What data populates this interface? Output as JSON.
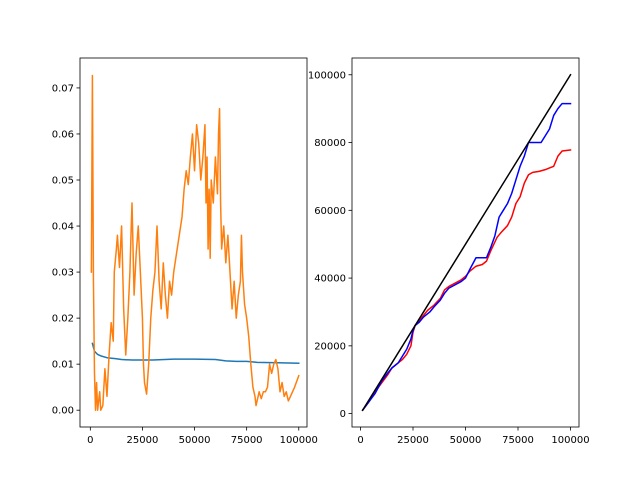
{
  "chart_data": [
    {
      "type": "line",
      "title": "",
      "xlabel": "",
      "ylabel": "",
      "xlim": [
        -4950,
        103950
      ],
      "ylim": [
        -0.00365,
        0.0765
      ],
      "grid": false,
      "legend": "none",
      "x_ticks": [
        0,
        25000,
        50000,
        75000,
        100000
      ],
      "x_tick_labels": [
        "0",
        "25000",
        "50000",
        "75000",
        "100000"
      ],
      "y_ticks": [
        0.0,
        0.01,
        0.02,
        0.03,
        0.04,
        0.05,
        0.06,
        0.07
      ],
      "y_tick_labels": [
        "0.00",
        "0.01",
        "0.02",
        "0.03",
        "0.04",
        "0.05",
        "0.06",
        "0.07"
      ],
      "series": [
        {
          "color": "#1f77b4",
          "points": [
            [
              1000,
              0.0145
            ],
            [
              2000,
              0.0128
            ],
            [
              3500,
              0.0121
            ],
            [
              5000,
              0.0118
            ],
            [
              8000,
              0.0114
            ],
            [
              12000,
              0.0112
            ],
            [
              15000,
              0.011
            ],
            [
              20000,
              0.0109
            ],
            [
              30000,
              0.0109
            ],
            [
              40000,
              0.0111
            ],
            [
              50000,
              0.0111
            ],
            [
              60000,
              0.011
            ],
            [
              65000,
              0.0107
            ],
            [
              70000,
              0.0106
            ],
            [
              75000,
              0.0106
            ],
            [
              80000,
              0.0104
            ],
            [
              90000,
              0.0103
            ],
            [
              100000,
              0.0102
            ]
          ]
        },
        {
          "color": "#ff7f0e",
          "points": [
            [
              500,
              0.03
            ],
            [
              1000,
              0.0727
            ],
            [
              1500,
              0.028
            ],
            [
              2000,
              0.008
            ],
            [
              2500,
              0.0
            ],
            [
              3000,
              0.006
            ],
            [
              3500,
              0.0
            ],
            [
              4500,
              0.004
            ],
            [
              5000,
              0.0
            ],
            [
              6000,
              0.001
            ],
            [
              7000,
              0.009
            ],
            [
              8000,
              0.003
            ],
            [
              9000,
              0.012
            ],
            [
              10000,
              0.019
            ],
            [
              11000,
              0.015
            ],
            [
              11500,
              0.03
            ],
            [
              12500,
              0.035
            ],
            [
              13000,
              0.038
            ],
            [
              14000,
              0.031
            ],
            [
              15000,
              0.04
            ],
            [
              16000,
              0.022
            ],
            [
              17000,
              0.012
            ],
            [
              18000,
              0.02
            ],
            [
              19000,
              0.03
            ],
            [
              19500,
              0.038
            ],
            [
              20000,
              0.045
            ],
            [
              21000,
              0.025
            ],
            [
              22000,
              0.034
            ],
            [
              23000,
              0.04
            ],
            [
              24000,
              0.03
            ],
            [
              25000,
              0.02
            ],
            [
              25500,
              0.01
            ],
            [
              26000,
              0.006
            ],
            [
              27000,
              0.0035
            ],
            [
              28000,
              0.01
            ],
            [
              29000,
              0.02
            ],
            [
              30000,
              0.026
            ],
            [
              31000,
              0.03
            ],
            [
              32000,
              0.04
            ],
            [
              33000,
              0.028
            ],
            [
              34000,
              0.022
            ],
            [
              35000,
              0.032
            ],
            [
              36000,
              0.025
            ],
            [
              37000,
              0.02
            ],
            [
              38000,
              0.028
            ],
            [
              39000,
              0.025
            ],
            [
              40000,
              0.03
            ],
            [
              42000,
              0.036
            ],
            [
              44000,
              0.042
            ],
            [
              45000,
              0.048
            ],
            [
              46000,
              0.052
            ],
            [
              47000,
              0.049
            ],
            [
              48000,
              0.055
            ],
            [
              49000,
              0.06
            ],
            [
              50000,
              0.052
            ],
            [
              51000,
              0.062
            ],
            [
              52000,
              0.058
            ],
            [
              53000,
              0.05
            ],
            [
              54000,
              0.055
            ],
            [
              55000,
              0.062
            ],
            [
              55500,
              0.045
            ],
            [
              56000,
              0.055
            ],
            [
              56500,
              0.035
            ],
            [
              57000,
              0.048
            ],
            [
              57500,
              0.033
            ],
            [
              58000,
              0.05
            ],
            [
              59000,
              0.045
            ],
            [
              60000,
              0.055
            ],
            [
              61000,
              0.047
            ],
            [
              61500,
              0.06
            ],
            [
              62000,
              0.0655
            ],
            [
              62500,
              0.045
            ],
            [
              63000,
              0.035
            ],
            [
              64000,
              0.04
            ],
            [
              65000,
              0.032
            ],
            [
              66000,
              0.038
            ],
            [
              67000,
              0.03
            ],
            [
              68000,
              0.022
            ],
            [
              69000,
              0.028
            ],
            [
              70000,
              0.02
            ],
            [
              71000,
              0.025
            ],
            [
              72000,
              0.028
            ],
            [
              72500,
              0.038
            ],
            [
              73000,
              0.03
            ],
            [
              74000,
              0.023
            ],
            [
              75000,
              0.02
            ],
            [
              76000,
              0.016
            ],
            [
              77000,
              0.01
            ],
            [
              78000,
              0.005
            ],
            [
              79000,
              0.003
            ],
            [
              79500,
              0.001
            ],
            [
              80000,
              0.002
            ],
            [
              81000,
              0.004
            ],
            [
              82000,
              0.0025
            ],
            [
              83000,
              0.004
            ],
            [
              84000,
              0.004
            ],
            [
              85000,
              0.005
            ],
            [
              86000,
              0.01
            ],
            [
              87000,
              0.008
            ],
            [
              88000,
              0.01
            ],
            [
              89000,
              0.011
            ],
            [
              90000,
              0.009
            ],
            [
              91000,
              0.004
            ],
            [
              92000,
              0.006
            ],
            [
              93000,
              0.003
            ],
            [
              94000,
              0.004
            ],
            [
              95000,
              0.002
            ],
            [
              96000,
              0.003
            ],
            [
              97000,
              0.004
            ],
            [
              98000,
              0.005
            ],
            [
              100000,
              0.0075
            ]
          ]
        }
      ]
    },
    {
      "type": "line",
      "title": "",
      "xlabel": "",
      "ylabel": "",
      "xlim": [
        -4050,
        104050
      ],
      "ylim": [
        -3950,
        104950
      ],
      "grid": false,
      "legend": "none",
      "x_ticks": [
        0,
        25000,
        50000,
        75000,
        100000
      ],
      "x_tick_labels": [
        "0",
        "25000",
        "50000",
        "75000",
        "100000"
      ],
      "y_ticks": [
        0,
        20000,
        40000,
        60000,
        80000,
        100000
      ],
      "y_tick_labels": [
        "0",
        "20000",
        "40000",
        "60000",
        "80000",
        "100000"
      ],
      "series": [
        {
          "color": "#ff0000",
          "points": [
            [
              1000,
              1000
            ],
            [
              4000,
              3500
            ],
            [
              7000,
              6500
            ],
            [
              10000,
              9000
            ],
            [
              13000,
              11500
            ],
            [
              15000,
              13500
            ],
            [
              18000,
              15000
            ],
            [
              20000,
              16000
            ],
            [
              22000,
              17500
            ],
            [
              24000,
              20000
            ],
            [
              25000,
              24000
            ],
            [
              26000,
              26000
            ],
            [
              28000,
              27500
            ],
            [
              30000,
              29000
            ],
            [
              32000,
              30500
            ],
            [
              35000,
              32000
            ],
            [
              38000,
              34000
            ],
            [
              40000,
              36500
            ],
            [
              42000,
              37500
            ],
            [
              45000,
              38500
            ],
            [
              48000,
              39500
            ],
            [
              50000,
              40500
            ],
            [
              52000,
              42000
            ],
            [
              55000,
              43500
            ],
            [
              58000,
              44000
            ],
            [
              60000,
              45000
            ],
            [
              62000,
              48000
            ],
            [
              65000,
              52000
            ],
            [
              67000,
              53500
            ],
            [
              70000,
              55500
            ],
            [
              72000,
              58000
            ],
            [
              74000,
              62000
            ],
            [
              76000,
              64000
            ],
            [
              78000,
              68000
            ],
            [
              80000,
              70500
            ],
            [
              82000,
              71200
            ],
            [
              85000,
              71500
            ],
            [
              88000,
              72000
            ],
            [
              90000,
              72500
            ],
            [
              92000,
              73000
            ],
            [
              94000,
              76000
            ],
            [
              96000,
              77500
            ],
            [
              100000,
              77800
            ]
          ]
        },
        {
          "color": "#0000ff",
          "points": [
            [
              1000,
              1000
            ],
            [
              4000,
              3500
            ],
            [
              7000,
              6000
            ],
            [
              10000,
              9500
            ],
            [
              13000,
              12000
            ],
            [
              15000,
              13500
            ],
            [
              18000,
              15000
            ],
            [
              20000,
              17000
            ],
            [
              22000,
              19000
            ],
            [
              24000,
              22000
            ],
            [
              25000,
              24500
            ],
            [
              26000,
              26000
            ],
            [
              28000,
              27000
            ],
            [
              30000,
              28500
            ],
            [
              33000,
              30000
            ],
            [
              35000,
              31500
            ],
            [
              38000,
              33500
            ],
            [
              40000,
              35500
            ],
            [
              42000,
              37000
            ],
            [
              45000,
              38000
            ],
            [
              48000,
              39000
            ],
            [
              50000,
              40000
            ],
            [
              52000,
              42500
            ],
            [
              55000,
              46000
            ],
            [
              58000,
              46000
            ],
            [
              60000,
              46000
            ],
            [
              62000,
              49000
            ],
            [
              64000,
              52500
            ],
            [
              66000,
              58000
            ],
            [
              68000,
              60000
            ],
            [
              70000,
              62000
            ],
            [
              72000,
              65000
            ],
            [
              74000,
              69000
            ],
            [
              76000,
              73000
            ],
            [
              78000,
              76000
            ],
            [
              80000,
              80000
            ],
            [
              83000,
              80000
            ],
            [
              86000,
              80000
            ],
            [
              88000,
              82000
            ],
            [
              90000,
              84000
            ],
            [
              92000,
              88000
            ],
            [
              94000,
              90000
            ],
            [
              96000,
              91500
            ],
            [
              100000,
              91500
            ]
          ]
        },
        {
          "color": "#000000",
          "points": [
            [
              1000,
              1000
            ],
            [
              100000,
              100000
            ]
          ]
        }
      ]
    }
  ]
}
